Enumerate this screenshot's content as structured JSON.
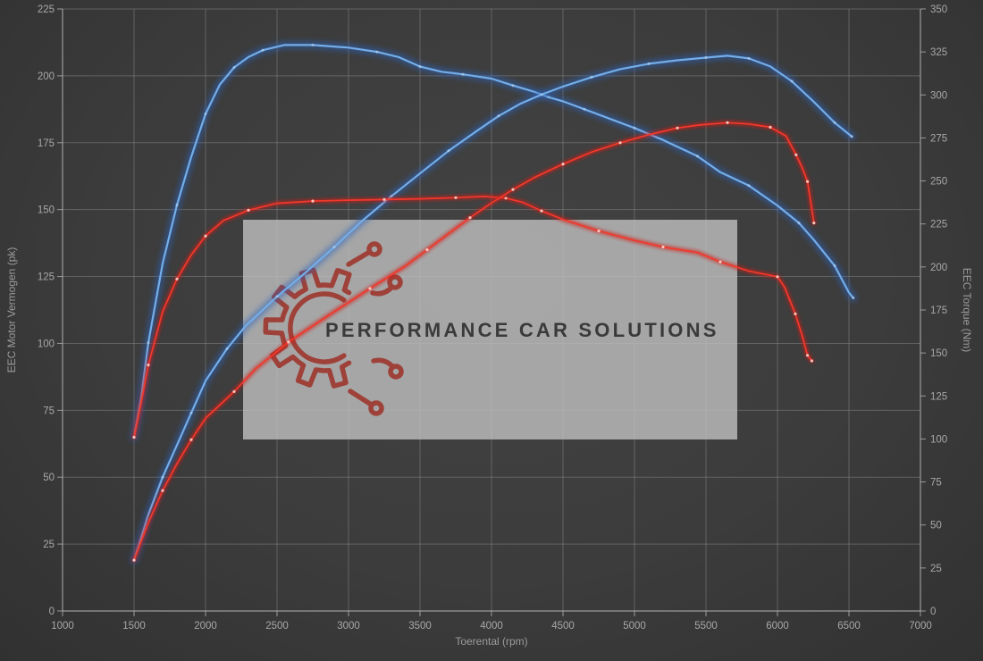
{
  "chart_data": {
    "type": "line",
    "title": "",
    "xlabel": "Toerental (rpm)",
    "ylabel_left": "EEC Motor Vermogen (pk)",
    "ylabel_right": "EEC Torque (Nm)",
    "x_axis": {
      "min": 1000,
      "max": 7000,
      "tick_step": 500
    },
    "y_axis_left": {
      "min": 0,
      "max": 225,
      "tick_step": 25
    },
    "y_axis_right": {
      "min": 0,
      "max": 350,
      "tick_step": 25
    },
    "grid": true,
    "legend": "none",
    "watermark": {
      "text": "PERFORMANCE CAR SOLUTIONS"
    },
    "series": [
      {
        "id": "torque-blue",
        "axis": "right",
        "unit": "Nm",
        "color_core": "#74ade8",
        "color_glow": "#2a63bd",
        "dot_color": "#d8e8fa",
        "points": [
          [
            1500,
            101
          ],
          [
            1550,
            124
          ],
          [
            1600,
            156
          ],
          [
            1700,
            202
          ],
          [
            1800,
            236
          ],
          [
            1900,
            264
          ],
          [
            2000,
            289
          ],
          [
            2100,
            306
          ],
          [
            2200,
            316
          ],
          [
            2300,
            322
          ],
          [
            2400,
            326
          ],
          [
            2550,
            329
          ],
          [
            2750,
            329
          ],
          [
            3000,
            327.5
          ],
          [
            3200,
            325
          ],
          [
            3350,
            322
          ],
          [
            3500,
            316.5
          ],
          [
            3650,
            313.5
          ],
          [
            3800,
            312
          ],
          [
            4000,
            309.5
          ],
          [
            4150,
            305.5
          ],
          [
            4300,
            301.8
          ],
          [
            4400,
            298.7
          ],
          [
            4500,
            296.3
          ],
          [
            4650,
            291.7
          ],
          [
            4800,
            287
          ],
          [
            5000,
            280.8
          ],
          [
            5200,
            273.8
          ],
          [
            5440,
            264.4
          ],
          [
            5600,
            255.1
          ],
          [
            5800,
            247.3
          ],
          [
            6000,
            235.7
          ],
          [
            6150,
            225.6
          ],
          [
            6250,
            216.2
          ],
          [
            6400,
            200.7
          ],
          [
            6500,
            185.1
          ],
          [
            6530,
            182
          ]
        ]
      },
      {
        "id": "power-blue",
        "axis": "left",
        "unit": "pk",
        "color_core": "#74ade8",
        "color_glow": "#2a63bd",
        "dot_color": "#d8e8fa",
        "points": [
          [
            1500,
            19
          ],
          [
            1600,
            36
          ],
          [
            1700,
            50
          ],
          [
            1800,
            62
          ],
          [
            1900,
            74
          ],
          [
            2000,
            86
          ],
          [
            2150,
            98
          ],
          [
            2280,
            106.5
          ],
          [
            2500,
            117.5
          ],
          [
            2700,
            126.5
          ],
          [
            2900,
            136
          ],
          [
            3100,
            146
          ],
          [
            3300,
            155
          ],
          [
            3500,
            163.5
          ],
          [
            3700,
            172
          ],
          [
            3900,
            179.5
          ],
          [
            4050,
            185
          ],
          [
            4200,
            189.5
          ],
          [
            4350,
            193
          ],
          [
            4500,
            196
          ],
          [
            4700,
            199.5
          ],
          [
            4900,
            202.5
          ],
          [
            5100,
            204.5
          ],
          [
            5300,
            205.8
          ],
          [
            5500,
            206.8
          ],
          [
            5650,
            207.5
          ],
          [
            5800,
            206.5
          ],
          [
            5950,
            203.5
          ],
          [
            6100,
            198
          ],
          [
            6250,
            190.5
          ],
          [
            6400,
            182.5
          ],
          [
            6520,
            177.3
          ]
        ]
      },
      {
        "id": "torque-red",
        "axis": "right",
        "unit": "Nm",
        "color_core": "#f2392c",
        "color_glow": "#d41d14",
        "dot_color": "#ffd2ca",
        "points": [
          [
            1500,
            101
          ],
          [
            1550,
            121
          ],
          [
            1600,
            143
          ],
          [
            1700,
            174
          ],
          [
            1800,
            193
          ],
          [
            1900,
            207
          ],
          [
            2000,
            218
          ],
          [
            2125,
            227
          ],
          [
            2300,
            233
          ],
          [
            2500,
            237
          ],
          [
            2750,
            238.3
          ],
          [
            3000,
            238.8
          ],
          [
            3250,
            239.2
          ],
          [
            3500,
            239.6
          ],
          [
            3750,
            240.3
          ],
          [
            3950,
            241
          ],
          [
            4100,
            240
          ],
          [
            4220,
            237.5
          ],
          [
            4350,
            232.6
          ],
          [
            4500,
            227.6
          ],
          [
            4750,
            220.9
          ],
          [
            5000,
            215.4
          ],
          [
            5200,
            211.6
          ],
          [
            5440,
            208.4
          ],
          [
            5600,
            203
          ],
          [
            5800,
            197.6
          ],
          [
            6000,
            194.3
          ],
          [
            6050,
            188.2
          ],
          [
            6125,
            172.7
          ],
          [
            6175,
            159.4
          ],
          [
            6210,
            148.6
          ],
          [
            6240,
            145.4
          ]
        ]
      },
      {
        "id": "power-red",
        "axis": "left",
        "unit": "pk",
        "color_core": "#f2392c",
        "color_glow": "#d41d14",
        "dot_color": "#ffd2ca",
        "points": [
          [
            1500,
            19
          ],
          [
            1600,
            33
          ],
          [
            1700,
            45
          ],
          [
            1800,
            55
          ],
          [
            1900,
            64
          ],
          [
            2000,
            72
          ],
          [
            2200,
            82
          ],
          [
            2350,
            90.5
          ],
          [
            2580,
            100.5
          ],
          [
            2875,
            111
          ],
          [
            3150,
            120.5
          ],
          [
            3400,
            129
          ],
          [
            3550,
            135
          ],
          [
            3700,
            141
          ],
          [
            3850,
            147
          ],
          [
            4000,
            152.5
          ],
          [
            4150,
            157.5
          ],
          [
            4300,
            162
          ],
          [
            4500,
            167
          ],
          [
            4700,
            171.5
          ],
          [
            4900,
            175
          ],
          [
            5100,
            178
          ],
          [
            5300,
            180.5
          ],
          [
            5450,
            181.6
          ],
          [
            5650,
            182.5
          ],
          [
            5800,
            182
          ],
          [
            5950,
            180.8
          ],
          [
            6060,
            177.5
          ],
          [
            6130,
            170.5
          ],
          [
            6170,
            166
          ],
          [
            6210,
            160.5
          ],
          [
            6235,
            152
          ],
          [
            6255,
            145
          ]
        ]
      }
    ]
  },
  "style": {
    "grid_color": "#838383",
    "spine_color": "#b3b3b3",
    "tick_label_color": "#a8a8a8",
    "axis_title_color": "#9b9b9b",
    "watermark_bg_fill": "#bdbdbd",
    "watermark_text_color": "#3a3a3a",
    "logo_color": "#9e3c34"
  }
}
